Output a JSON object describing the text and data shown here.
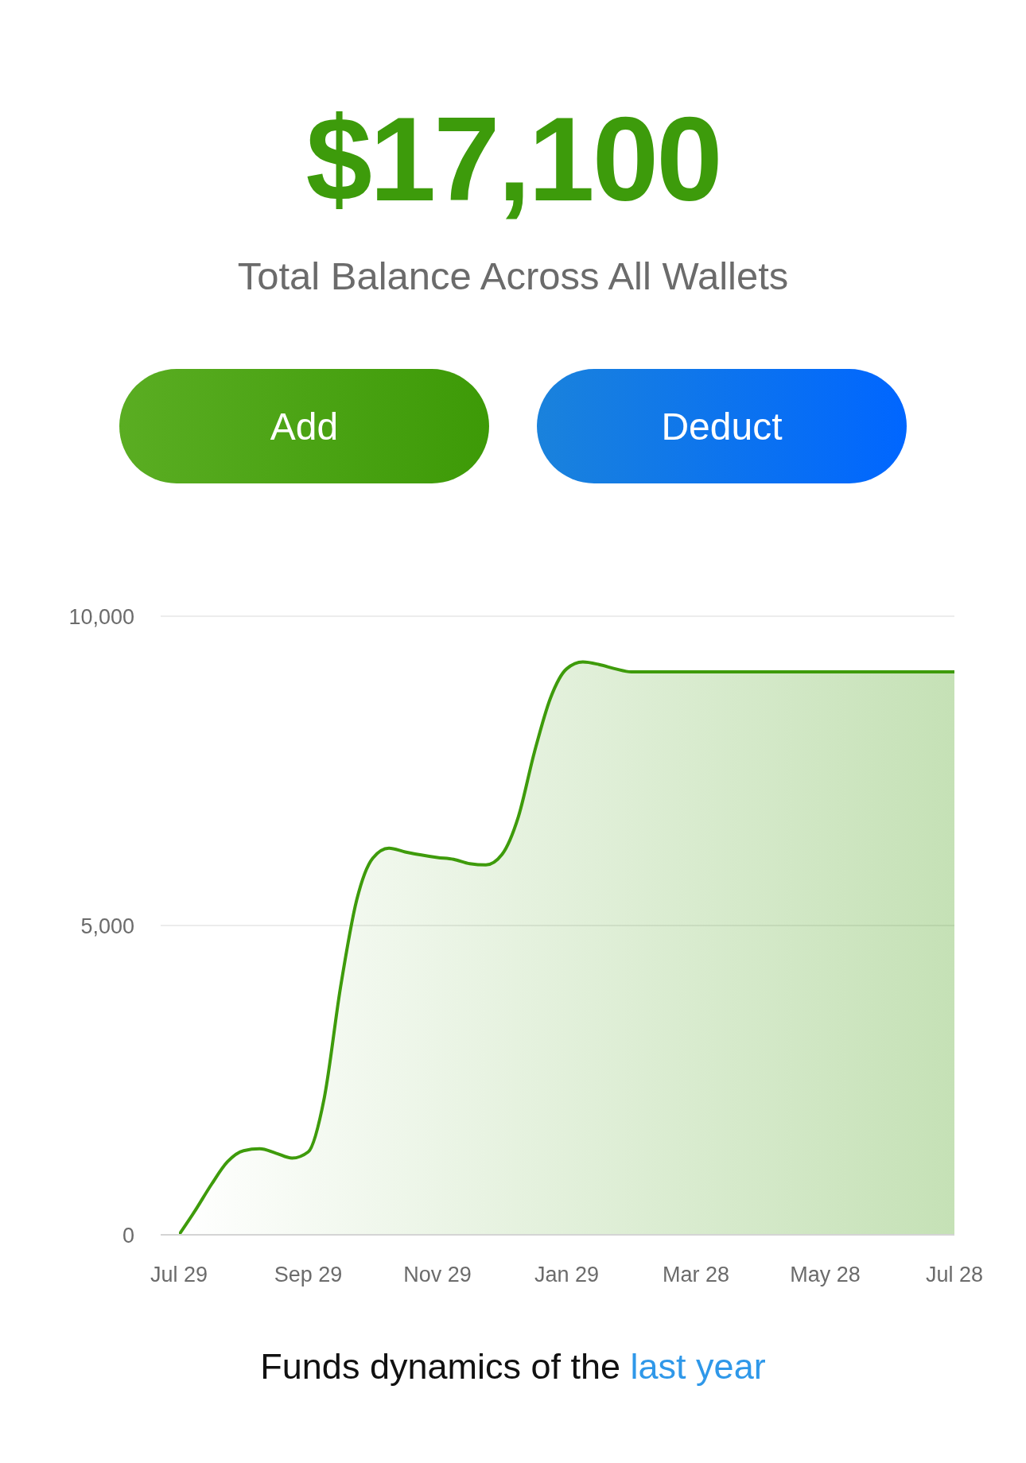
{
  "chart_data": {
    "type": "area",
    "title": "$17,100",
    "subtitle": "Total Balance Across All Wallets",
    "categories": [
      "Jul 29",
      null,
      null,
      null,
      null,
      null,
      null,
      null,
      "Sep 29",
      null,
      null,
      null,
      null,
      null,
      null,
      null,
      "Nov 29",
      null,
      null,
      null,
      null,
      null,
      null,
      null,
      "Jan 29",
      null,
      null,
      null,
      null,
      null,
      null,
      null,
      "Mar 28",
      null,
      null,
      null,
      null,
      null,
      null,
      null,
      "May 28",
      null,
      null,
      null,
      null,
      null,
      null,
      null,
      "Jul 28"
    ],
    "values": [
      0,
      390,
      810,
      1180,
      1360,
      1390,
      1320,
      1240,
      1340,
      2220,
      4000,
      5410,
      6090,
      6250,
      6190,
      6140,
      6100,
      6070,
      6000,
      5980,
      6150,
      6750,
      7800,
      8680,
      9150,
      9260,
      9220,
      9150,
      9100,
      9100,
      9100,
      9100,
      9100,
      9100,
      9100,
      9100,
      9100,
      9100,
      9100,
      9100,
      9100,
      9100,
      9100,
      9100,
      9100,
      9100,
      9100,
      9100,
      9100
    ],
    "color": "#3e9b0b",
    "ylim": [
      0,
      10000
    ],
    "yticks": [
      0,
      {
        "value": 5000,
        "label": "5,000"
      },
      {
        "value": 10000,
        "label": "10,000"
      }
    ],
    "grid": "y",
    "annotations": [
      "Add",
      "Deduct",
      "Funds dynamics of the",
      "last year"
    ]
  }
}
